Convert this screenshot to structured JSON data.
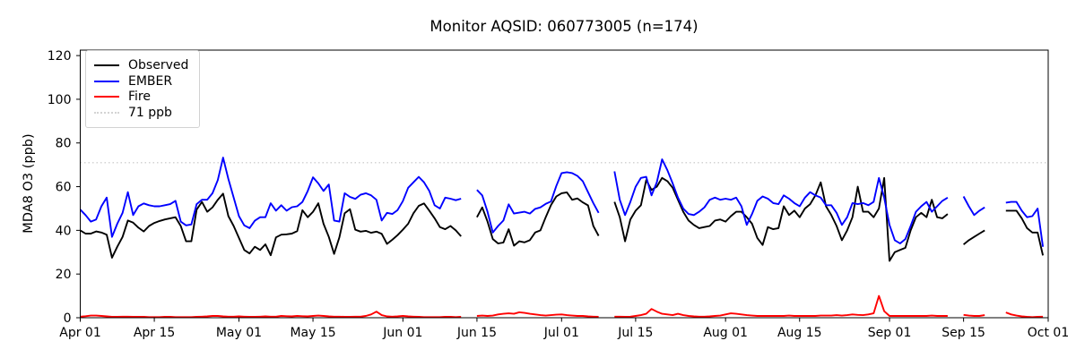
{
  "chart_data": {
    "type": "line",
    "title": "Monitor AQSID: 060773005 (n=174)",
    "ylabel": "MDA8 O3 (ppb)",
    "xlabel": "",
    "n_points": 174,
    "grid": false,
    "legend_position": "upper-left",
    "ylim": [
      0,
      122.5
    ],
    "yticks": [
      0,
      20,
      40,
      60,
      80,
      100,
      120
    ],
    "x_axis_days_total": 183,
    "x_start": "Apr 01",
    "x_end": "Oct 01",
    "xticks": [
      {
        "day": 0,
        "label": "Apr 01"
      },
      {
        "day": 14,
        "label": "Apr 15"
      },
      {
        "day": 30,
        "label": "May 01"
      },
      {
        "day": 44,
        "label": "May 15"
      },
      {
        "day": 61,
        "label": "Jun 01"
      },
      {
        "day": 75,
        "label": "Jun 15"
      },
      {
        "day": 91,
        "label": "Jul 01"
      },
      {
        "day": 105,
        "label": "Jul 15"
      },
      {
        "day": 122,
        "label": "Aug 01"
      },
      {
        "day": 136,
        "label": "Aug 15"
      },
      {
        "day": 153,
        "label": "Sep 01"
      },
      {
        "day": 167,
        "label": "Sep 15"
      },
      {
        "day": 183,
        "label": "Oct 01"
      }
    ],
    "reference_line": {
      "value": 71,
      "label": "71 ppb",
      "color": "#d3d3d3",
      "style": "dotted"
    },
    "series": [
      {
        "name": "Observed",
        "color": "#000000",
        "style": "solid",
        "values": [
          40,
          38.5,
          38.5,
          39.5,
          39,
          38,
          27.5,
          32.5,
          37,
          44.5,
          43.5,
          41.2,
          39.5,
          42,
          43.4,
          44.3,
          45,
          45.5,
          46,
          42,
          35,
          35,
          49.5,
          53,
          48.5,
          50.5,
          54,
          56.8,
          46.5,
          42,
          36.5,
          31,
          29.4,
          32.5,
          31,
          33.6,
          28.6,
          36.8,
          38,
          38.2,
          38.5,
          39.6,
          49.2,
          46,
          48.5,
          52.4,
          43,
          37,
          29.2,
          36.8,
          47.8,
          49.7,
          40.3,
          39.4,
          39.8,
          38.9,
          39.4,
          38.4,
          33.8,
          35.7,
          37.8,
          40.3,
          43,
          47.8,
          51.2,
          52.3,
          49,
          45.5,
          41.5,
          40.5,
          42,
          40,
          37.3,
          null,
          null,
          46,
          50.5,
          44,
          36,
          34,
          34.4,
          40.5,
          33,
          35,
          34.5,
          35.5,
          39,
          40,
          46,
          51.6,
          55.5,
          57,
          57.4,
          54,
          54.6,
          52.8,
          51.4,
          42,
          37.5,
          null,
          null,
          53,
          46,
          35,
          45,
          49,
          51.5,
          63,
          58.5,
          60,
          64,
          62.5,
          59.5,
          54,
          48.5,
          44.5,
          42.5,
          41,
          41.5,
          42,
          44.5,
          45,
          44,
          46.5,
          48.5,
          48.5,
          46,
          43,
          36.5,
          33.3,
          41.5,
          40.5,
          41,
          51,
          47,
          49,
          46,
          50,
          52,
          56,
          62,
          51,
          47,
          42,
          35.5,
          40,
          46,
          60,
          48.5,
          48.5,
          46,
          50,
          64,
          26,
          30,
          31,
          32,
          40,
          46,
          48,
          46,
          54,
          46,
          45.5,
          47.5,
          null,
          null,
          33.5,
          35.5,
          37,
          38.5,
          40,
          null,
          null,
          null,
          49,
          49,
          49,
          45.5,
          41,
          39,
          39,
          28.5
        ]
      },
      {
        "name": "EMBER",
        "color": "#0000ff",
        "style": "solid",
        "values": [
          49.5,
          47,
          44,
          45,
          51,
          55,
          37,
          43,
          48,
          57.5,
          47,
          51,
          52.3,
          51.5,
          51,
          51,
          51.5,
          52,
          53.5,
          44,
          42.3,
          42.7,
          52,
          54,
          54,
          57,
          63,
          73.3,
          63.5,
          55,
          46.5,
          42.3,
          41,
          44.4,
          46,
          46,
          52.4,
          49,
          51.5,
          49,
          50.6,
          51,
          53,
          58,
          64.3,
          61.5,
          58,
          61,
          44.5,
          44,
          57,
          55.3,
          54.4,
          56.3,
          57,
          56,
          54,
          44.5,
          48,
          47.5,
          49.3,
          53.4,
          59.5,
          62,
          64.5,
          62,
          58,
          51.5,
          50,
          55,
          54.5,
          53.8,
          54.5,
          null,
          null,
          58.5,
          56,
          48.5,
          39,
          42,
          44.5,
          51.9,
          47.7,
          48.1,
          48.5,
          47.7,
          49.8,
          50.5,
          52.1,
          53.2,
          60.3,
          66.2,
          66.6,
          66.2,
          64.9,
          62.5,
          57.5,
          52.5,
          48,
          null,
          null,
          67,
          54,
          47,
          53,
          60,
          64,
          64.5,
          56,
          62,
          72.5,
          67.5,
          61.5,
          55,
          50,
          47.5,
          47,
          48.5,
          50.5,
          54,
          55,
          54,
          54.5,
          54,
          55,
          51,
          42.5,
          47.5,
          53.5,
          55.5,
          54.5,
          52.5,
          52,
          56,
          54.5,
          52.5,
          51,
          55,
          57.5,
          56,
          55,
          51.5,
          51.5,
          48,
          42.5,
          46,
          52.5,
          52,
          52.5,
          51.5,
          53,
          64,
          55,
          42.5,
          35.5,
          34,
          36,
          42,
          48.5,
          51,
          53,
          48.5,
          51,
          53.5,
          55,
          null,
          null,
          55.5,
          51,
          47,
          49,
          50.5,
          null,
          null,
          null,
          52.7,
          53,
          53,
          49,
          46,
          46.5,
          50,
          32.5
        ]
      },
      {
        "name": "Fire",
        "color": "#ff0000",
        "style": "solid",
        "values": [
          0.5,
          0.7,
          1,
          1,
          0.8,
          0.6,
          0.4,
          0.4,
          0.5,
          0.5,
          0.4,
          0.4,
          0.4,
          0.3,
          0.3,
          0.3,
          0.4,
          0.4,
          0.3,
          0.3,
          0.3,
          0.3,
          0.4,
          0.5,
          0.6,
          0.8,
          0.8,
          0.6,
          0.5,
          0.5,
          0.6,
          0.5,
          0.4,
          0.4,
          0.5,
          0.6,
          0.5,
          0.5,
          0.8,
          0.7,
          0.6,
          0.8,
          0.7,
          0.6,
          0.8,
          1,
          0.8,
          0.6,
          0.5,
          0.5,
          0.4,
          0.4,
          0.5,
          0.5,
          0.8,
          1.5,
          2.8,
          1.2,
          0.6,
          0.5,
          0.6,
          0.8,
          0.6,
          0.5,
          0.4,
          0.3,
          0.3,
          0.3,
          0.3,
          0.4,
          0.4,
          0.3,
          0.4,
          null,
          null,
          0.8,
          1,
          0.8,
          1,
          1.5,
          1.8,
          2,
          1.8,
          2.5,
          2.2,
          1.8,
          1.5,
          1.2,
          1,
          1.2,
          1.4,
          1.5,
          1.2,
          1,
          0.8,
          0.8,
          0.6,
          0.5,
          0.4,
          null,
          null,
          0.5,
          0.5,
          0.4,
          0.5,
          0.8,
          1.2,
          1.8,
          4,
          2.8,
          1.8,
          1.5,
          1.2,
          1.8,
          1.2,
          0.8,
          0.6,
          0.5,
          0.5,
          0.6,
          0.8,
          1,
          1.5,
          2,
          1.8,
          1.5,
          1.2,
          1,
          0.8,
          0.8,
          0.8,
          0.8,
          0.8,
          0.8,
          1,
          0.8,
          0.8,
          0.8,
          0.8,
          0.8,
          1,
          1,
          1,
          1.2,
          1,
          1.2,
          1.5,
          1.3,
          1.2,
          1.5,
          2,
          10,
          3,
          0.8,
          0.8,
          0.8,
          0.8,
          0.8,
          0.8,
          0.8,
          0.8,
          1,
          0.8,
          0.8,
          0.8,
          null,
          null,
          1.3,
          1,
          0.8,
          0.8,
          1.2,
          null,
          null,
          null,
          2.4,
          1.5,
          1,
          0.6,
          0.4,
          0.3,
          0.4,
          0.5
        ]
      }
    ]
  }
}
